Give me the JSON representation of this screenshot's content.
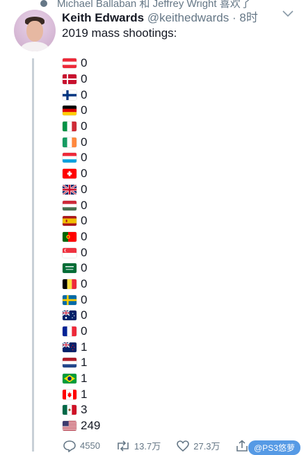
{
  "context_line": "Michael Ballaban 和 Jeffrey Wright 喜欢了",
  "tweet": {
    "name": "Keith Edwards",
    "handle": "@keithedwards",
    "separator": "·",
    "time": "8时",
    "text": "2019 mass shootings:"
  },
  "rows": [
    {
      "flag": "austria",
      "value": "0"
    },
    {
      "flag": "denmark",
      "value": "0"
    },
    {
      "flag": "finland",
      "value": "0"
    },
    {
      "flag": "germany",
      "value": "0"
    },
    {
      "flag": "italy",
      "value": "0"
    },
    {
      "flag": "ireland",
      "value": "0"
    },
    {
      "flag": "luxembourg",
      "value": "0"
    },
    {
      "flag": "switzerland",
      "value": "0"
    },
    {
      "flag": "united-kingdom",
      "value": "0"
    },
    {
      "flag": "hungary",
      "value": "0"
    },
    {
      "flag": "spain",
      "value": "0"
    },
    {
      "flag": "portugal",
      "value": "0"
    },
    {
      "flag": "singapore",
      "value": "0"
    },
    {
      "flag": "saudi-arabia",
      "value": "0"
    },
    {
      "flag": "belgium",
      "value": "0"
    },
    {
      "flag": "sweden",
      "value": "0"
    },
    {
      "flag": "australia",
      "value": "0"
    },
    {
      "flag": "france",
      "value": "0"
    },
    {
      "flag": "new-zealand",
      "value": "1"
    },
    {
      "flag": "netherlands",
      "value": "1"
    },
    {
      "flag": "brazil",
      "value": "1"
    },
    {
      "flag": "canada",
      "value": "1"
    },
    {
      "flag": "mexico",
      "value": "3"
    },
    {
      "flag": "united-states",
      "value": "249"
    }
  ],
  "actions": {
    "replies": "4550",
    "retweets": "13.7万",
    "likes": "27.3万"
  },
  "watermark": "@PS3悠萝",
  "colors": {
    "muted": "#657786",
    "thread": "#c8d0d7"
  }
}
